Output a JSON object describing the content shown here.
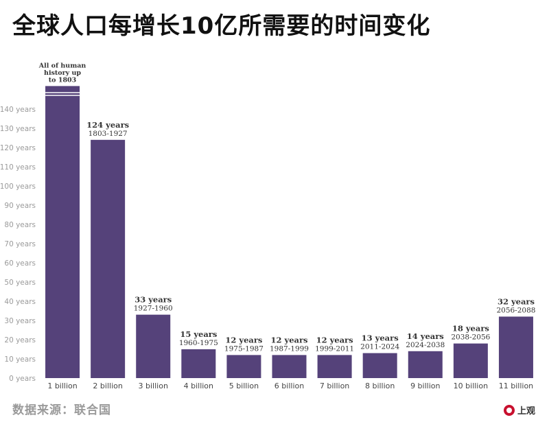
{
  "title": "全球人口每增长10亿所需要的时间变化",
  "source": "数据来源：联合国",
  "logo_text": "上观",
  "colors": {
    "bar": "#55427a",
    "axis_text": "#9a9a9a"
  },
  "chart_data": {
    "type": "bar",
    "title": "全球人口每增长10亿所需要的时间变化",
    "xlabel": "",
    "ylabel": "",
    "ylim": [
      0,
      150
    ],
    "y_ticks": [
      0,
      10,
      20,
      30,
      40,
      50,
      60,
      70,
      80,
      90,
      100,
      110,
      120,
      130,
      140
    ],
    "y_tick_labels": [
      "0 years",
      "10 years",
      "20 years",
      "30 years",
      "40 years",
      "50 years",
      "60 years",
      "70 years",
      "80 years",
      "90 years",
      "100 years",
      "110 years",
      "120 years",
      "130 years",
      "140 years"
    ],
    "grid": false,
    "categories": [
      "1 billion",
      "2 billion",
      "3 billion",
      "4 billion",
      "5 billion",
      "6 billion",
      "7 billion",
      "8 billion",
      "9 billion",
      "10 billion",
      "11 billion"
    ],
    "values": [
      152,
      124,
      33,
      15,
      12,
      12,
      12,
      13,
      14,
      18,
      32
    ],
    "value_labels": [
      "",
      "124 years",
      "33 years",
      "15 years",
      "12 years",
      "12 years",
      "12 years",
      "13 years",
      "14 years",
      "18 years",
      "32 years"
    ],
    "range_labels": [
      "",
      "1803-1927",
      "1927-1960",
      "1960-1975",
      "1975-1987",
      "1987-1999",
      "1999-2011",
      "2011-2024",
      "2024-2038",
      "2038-2056",
      "2056-2088"
    ],
    "annotations": [
      "All of human",
      "history up",
      "to 1803"
    ],
    "broken_bar_index": 0
  }
}
